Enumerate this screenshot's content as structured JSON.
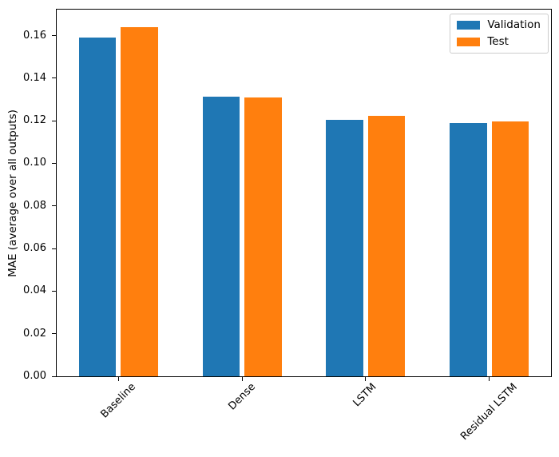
{
  "chart_data": {
    "type": "bar",
    "title": "",
    "categories": [
      "Baseline",
      "Dense",
      "LSTM",
      "Residual LSTM"
    ],
    "series": [
      {
        "name": "Validation",
        "color": "#1f77b4",
        "values": [
          0.1591,
          0.1313,
          0.1205,
          0.1188
        ]
      },
      {
        "name": "Test",
        "color": "#ff7f0e",
        "values": [
          0.1641,
          0.1311,
          0.1223,
          0.1196
        ]
      }
    ],
    "xlabel": "",
    "ylabel": "MAE (average over all outputs)",
    "ylim": [
      0,
      0.1722
    ],
    "yticks": [
      0.0,
      0.02,
      0.04,
      0.06,
      0.08,
      0.1,
      0.12,
      0.14,
      0.16
    ],
    "ytick_labels": [
      "0.00",
      "0.02",
      "0.04",
      "0.06",
      "0.08",
      "0.10",
      "0.12",
      "0.14",
      "0.16"
    ],
    "bar_width_units": 0.3,
    "bar_offset_units": 0.17,
    "x_tick_rotation_deg": 45,
    "grid": false,
    "legend": {
      "position": "upper-right",
      "entries": [
        "Validation",
        "Test"
      ]
    }
  }
}
